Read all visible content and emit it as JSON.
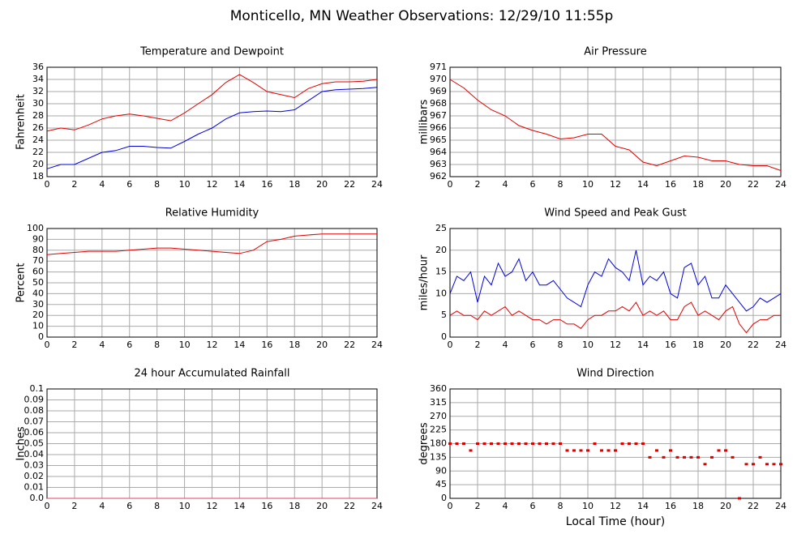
{
  "title": "Monticello, MN Weather Observations: 12/29/10 11:55p",
  "chart_data": [
    {
      "type": "line",
      "title": "Temperature and Dewpoint",
      "ylabel": "Fahrenheit",
      "x": [
        0,
        1,
        2,
        3,
        4,
        5,
        6,
        7,
        8,
        9,
        10,
        11,
        12,
        13,
        14,
        15,
        16,
        17,
        18,
        19,
        20,
        21,
        22,
        23,
        24
      ],
      "series": [
        {
          "color": "#e00000",
          "values": [
            25.5,
            26,
            25.7,
            26.5,
            27.5,
            28,
            28.3,
            28,
            27.6,
            27.2,
            28.5,
            30,
            31.5,
            33.5,
            34.8,
            33.5,
            32,
            31.5,
            31,
            32.5,
            33.3,
            33.6,
            33.6,
            33.7,
            34
          ]
        },
        {
          "color": "#0000e0",
          "values": [
            19.3,
            20,
            20,
            21,
            22,
            22.3,
            23,
            23,
            22.8,
            22.7,
            23.8,
            25,
            26,
            27.5,
            28.5,
            28.7,
            28.8,
            28.7,
            29,
            30.5,
            32,
            32.3,
            32.4,
            32.5,
            32.7
          ]
        }
      ],
      "xlim": [
        0,
        24
      ],
      "xticks": [
        0,
        2,
        4,
        6,
        8,
        10,
        12,
        14,
        16,
        18,
        20,
        22,
        24
      ],
      "ylim": [
        18,
        36
      ],
      "yticks": [
        18,
        20,
        22,
        24,
        26,
        28,
        30,
        32,
        34,
        36
      ],
      "grid": true
    },
    {
      "type": "line",
      "title": "Air Pressure",
      "ylabel": "millibars",
      "x": [
        0,
        1,
        2,
        3,
        4,
        5,
        6,
        7,
        8,
        9,
        10,
        11,
        12,
        13,
        14,
        15,
        16,
        17,
        18,
        19,
        20,
        21,
        22,
        23,
        24
      ],
      "series": [
        {
          "color": "#e00000",
          "values": [
            970,
            969.3,
            968.3,
            967.5,
            967,
            966.2,
            965.8,
            965.5,
            965.1,
            965.2,
            965.5,
            965.5,
            964.5,
            964.2,
            963.2,
            962.9,
            963.3,
            963.7,
            963.6,
            963.3,
            963.3,
            963,
            962.9,
            962.9,
            962.5
          ]
        }
      ],
      "xlim": [
        0,
        24
      ],
      "xticks": [
        0,
        2,
        4,
        6,
        8,
        10,
        12,
        14,
        16,
        18,
        20,
        22,
        24
      ],
      "ylim": [
        962,
        971
      ],
      "yticks": [
        962,
        963,
        964,
        965,
        966,
        967,
        968,
        969,
        970,
        971
      ],
      "grid": true
    },
    {
      "type": "line",
      "title": "Relative Humidity",
      "ylabel": "Percent",
      "x": [
        0,
        1,
        2,
        3,
        4,
        5,
        6,
        7,
        8,
        9,
        10,
        11,
        12,
        13,
        14,
        15,
        16,
        17,
        18,
        19,
        20,
        21,
        22,
        23,
        24
      ],
      "series": [
        {
          "color": "#e00000",
          "values": [
            76,
            77,
            78,
            79,
            79,
            79,
            80,
            81,
            82,
            82,
            81,
            80,
            79,
            78,
            77,
            80,
            88,
            90,
            93,
            94,
            95,
            95,
            95,
            95,
            95
          ]
        }
      ],
      "xlim": [
        0,
        24
      ],
      "xticks": [
        0,
        2,
        4,
        6,
        8,
        10,
        12,
        14,
        16,
        18,
        20,
        22,
        24
      ],
      "ylim": [
        0,
        100
      ],
      "yticks": [
        0,
        10,
        20,
        30,
        40,
        50,
        60,
        70,
        80,
        90,
        100
      ],
      "grid": true
    },
    {
      "type": "line",
      "title": "Wind Speed and Peak Gust",
      "ylabel": "miles/hour",
      "x": [
        0,
        0.5,
        1,
        1.5,
        2,
        2.5,
        3,
        3.5,
        4,
        4.5,
        5,
        5.5,
        6,
        6.5,
        7,
        7.5,
        8,
        8.5,
        9,
        9.5,
        10,
        10.5,
        11,
        11.5,
        12,
        12.5,
        13,
        13.5,
        14,
        14.5,
        15,
        15.5,
        16,
        16.5,
        17,
        17.5,
        18,
        18.5,
        19,
        19.5,
        20,
        20.5,
        21,
        21.5,
        22,
        22.5,
        23,
        23.5,
        24
      ],
      "series": [
        {
          "color": "#0000e0",
          "values": [
            10,
            14,
            13,
            15,
            8,
            14,
            12,
            17,
            14,
            15,
            18,
            13,
            15,
            12,
            12,
            13,
            11,
            9,
            8,
            7,
            12,
            15,
            14,
            18,
            16,
            15,
            13,
            20,
            12,
            14,
            13,
            15,
            10,
            9,
            16,
            17,
            12,
            14,
            9,
            9,
            12,
            10,
            8,
            6,
            7,
            9,
            8,
            9,
            10
          ]
        },
        {
          "color": "#e00000",
          "values": [
            5,
            6,
            5,
            5,
            4,
            6,
            5,
            6,
            7,
            5,
            6,
            5,
            4,
            4,
            3,
            4,
            4,
            3,
            3,
            2,
            4,
            5,
            5,
            6,
            6,
            7,
            6,
            8,
            5,
            6,
            5,
            6,
            4,
            4,
            7,
            8,
            5,
            6,
            5,
            4,
            6,
            7,
            3,
            1,
            3,
            4,
            4,
            5,
            5
          ]
        }
      ],
      "xlim": [
        0,
        24
      ],
      "xticks": [
        0,
        2,
        4,
        6,
        8,
        10,
        12,
        14,
        16,
        18,
        20,
        22,
        24
      ],
      "ylim": [
        0,
        25
      ],
      "yticks": [
        0,
        5,
        10,
        15,
        20,
        25
      ],
      "grid": true
    },
    {
      "type": "line",
      "title": "24 hour Accumulated Rainfall",
      "ylabel": "Inches",
      "x": [
        0,
        24
      ],
      "series": [
        {
          "color": "#e04060",
          "values": [
            0,
            0
          ]
        }
      ],
      "xlim": [
        0,
        24
      ],
      "xticks": [
        0,
        2,
        4,
        6,
        8,
        10,
        12,
        14,
        16,
        18,
        20,
        22,
        24
      ],
      "ylim": [
        0,
        0.1
      ],
      "yticks": [
        {
          "value": 0,
          "label": "0.0"
        },
        0.01,
        0.02,
        0.03,
        0.04,
        0.05,
        0.06,
        0.07,
        0.08,
        0.09,
        0.1
      ],
      "grid": true
    },
    {
      "type": "scatter",
      "title": "Wind Direction",
      "ylabel": "degrees",
      "xlabel": "Local Time (hour)",
      "x": [
        0,
        0.5,
        1,
        1.5,
        2,
        2.5,
        3,
        3.5,
        4,
        4.5,
        5,
        5.5,
        6,
        6.5,
        7,
        7.5,
        8,
        8.5,
        9,
        9.5,
        10,
        10.5,
        11,
        11.5,
        12,
        12.5,
        13,
        13.5,
        14,
        14.5,
        15,
        15.5,
        16,
        16.5,
        17,
        17.5,
        18,
        18.5,
        19,
        19.5,
        20,
        20.5,
        21,
        21.5,
        22,
        22.5,
        23,
        23.5,
        24
      ],
      "series": [
        {
          "color": "#e00000",
          "values": [
            180,
            180,
            180,
            157.5,
            180,
            180,
            180,
            180,
            180,
            180,
            180,
            180,
            180,
            180,
            180,
            180,
            180,
            157.5,
            157.5,
            157.5,
            157.5,
            180,
            157.5,
            157.5,
            157.5,
            180,
            180,
            180,
            180,
            135,
            157.5,
            135,
            157.5,
            135,
            135,
            135,
            135,
            112.5,
            135,
            157.5,
            157.5,
            135,
            0,
            112.5,
            112.5,
            135,
            112.5,
            112.5,
            112.5
          ]
        }
      ],
      "xlim": [
        0,
        24
      ],
      "xticks": [
        0,
        2,
        4,
        6,
        8,
        10,
        12,
        14,
        16,
        18,
        20,
        22,
        24
      ],
      "ylim": [
        0,
        360
      ],
      "yticks": [
        0,
        45,
        90,
        135,
        180,
        225,
        270,
        315,
        360
      ],
      "grid": true
    }
  ]
}
